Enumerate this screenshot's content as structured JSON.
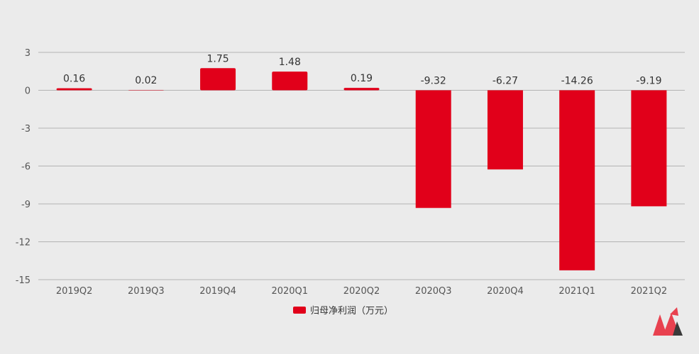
{
  "chart_data": {
    "type": "bar",
    "categories": [
      "2019Q2",
      "2019Q3",
      "2019Q4",
      "2020Q1",
      "2020Q2",
      "2020Q3",
      "2020Q4",
      "2021Q1",
      "2021Q2"
    ],
    "series": [
      {
        "name": "归母净利润（万元）",
        "values": [
          0.16,
          0.02,
          1.75,
          1.48,
          0.19,
          -9.32,
          -6.27,
          -14.26,
          -9.19
        ],
        "labels": [
          "0.16",
          "0.02",
          "1.75",
          "1.48",
          "0.19",
          "-9.32",
          "-6.27",
          "-14.26",
          "-9.19"
        ],
        "color": "#e1001a"
      }
    ],
    "ylim": [
      -15,
      3
    ],
    "yticks": [
      3,
      0,
      -3,
      -6,
      -9,
      -12,
      -15
    ],
    "grid": true,
    "legend": "bottom-center"
  },
  "colors": {
    "background": "#ebebeb",
    "bar": "#e1001a",
    "grid": "#b3b3b3"
  },
  "logo": {
    "icon": "brand-logo-icon",
    "colors": [
      "#e8414f",
      "#3a3a3a"
    ]
  }
}
